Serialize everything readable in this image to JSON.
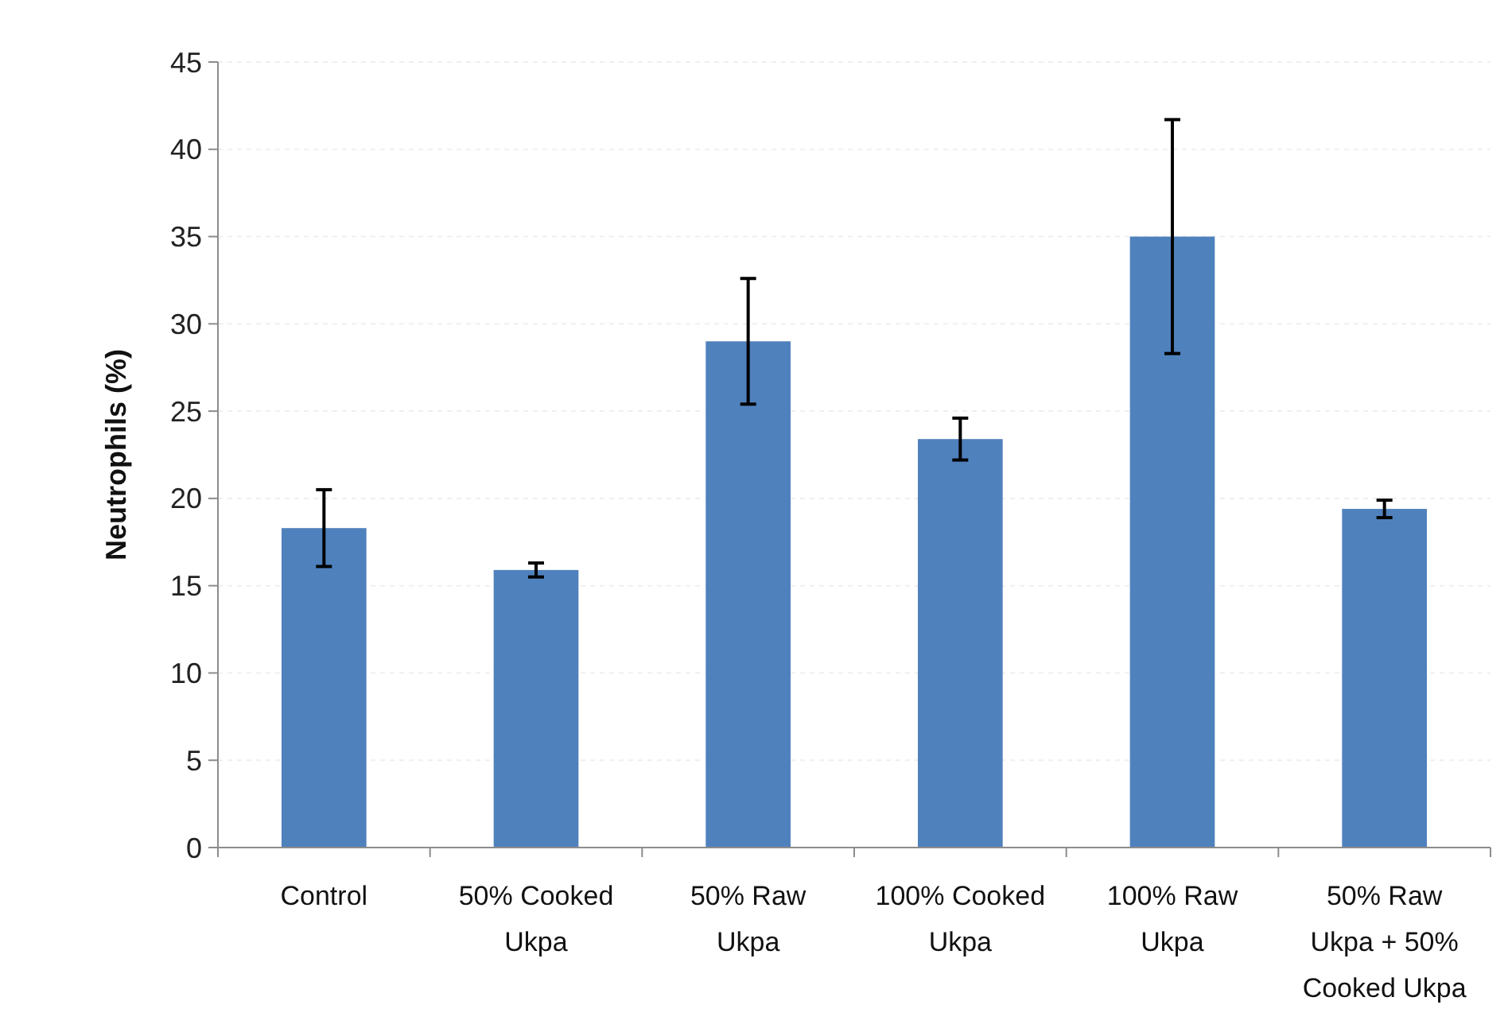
{
  "chart_data": {
    "type": "bar",
    "ylabel": "Neutrophils (%)",
    "categories": [
      "Control",
      "50% Cooked Ukpa",
      "50% Raw Ukpa",
      "100% Cooked Ukpa",
      "100% Raw Ukpa",
      "50% Raw Ukpa + 50% Cooked Ukpa"
    ],
    "values": [
      18.3,
      15.9,
      29.0,
      23.4,
      35.0,
      19.4
    ],
    "errors": [
      2.2,
      0.4,
      3.6,
      1.2,
      6.7,
      0.5
    ],
    "color": "#4f81bd",
    "ylim": [
      0,
      45
    ],
    "yticks": [
      0,
      5,
      10,
      15,
      20,
      25,
      30,
      35,
      40,
      45
    ],
    "grid": "y"
  }
}
